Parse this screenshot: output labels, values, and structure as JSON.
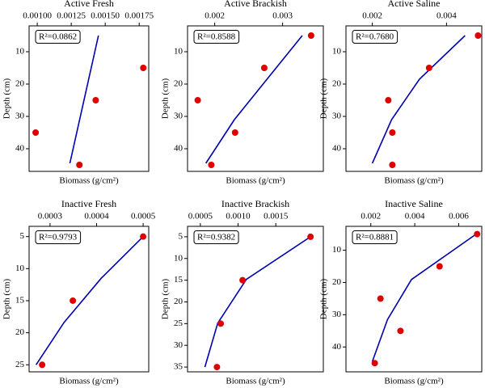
{
  "chart_data": [
    {
      "type": "scatter",
      "title": "Active Fresh",
      "xlabel": "Biomass (g/cm²)",
      "ylabel": "Depth (cm)",
      "annotation": "R²=0.0862",
      "x": [
        0.00178,
        0.00143,
        0.000988,
        0.00131
      ],
      "y": [
        15,
        25,
        35,
        45
      ],
      "color": "#e00000",
      "fit": {
        "x": [
          0.00145,
          0.00124
        ],
        "y": [
          5,
          44.5
        ],
        "color": "#0000b0"
      },
      "xlim": [
        0.00094,
        0.00182
      ],
      "ylim": [
        2,
        47
      ],
      "y_inverted": true,
      "xticks": [
        {
          "value": 0.001,
          "label": "0.00100"
        },
        {
          "value": 0.00125,
          "label": "0.00125"
        },
        {
          "value": 0.0015,
          "label": "0.00150"
        },
        {
          "value": 0.00175,
          "label": "0.00175"
        }
      ],
      "yticks": [
        10,
        20,
        30,
        40
      ]
    },
    {
      "type": "scatter",
      "title": "Active Brackish",
      "xlabel": "Biomass (g/cm²)",
      "ylabel": "Depth (cm)",
      "annotation": "R²=0.8588",
      "x": [
        0.00342,
        0.00273,
        0.00175,
        0.0023,
        0.00195
      ],
      "y": [
        5,
        15,
        25,
        35,
        45
      ],
      "color": "#e00000",
      "fit": {
        "x": [
          0.00187,
          0.00229,
          0.00277,
          0.00329
        ],
        "y": [
          44.5,
          31,
          18.5,
          5
        ],
        "color": "#0000b0"
      },
      "xlim": [
        0.0016,
        0.0036
      ],
      "ylim": [
        2,
        47
      ],
      "y_inverted": true,
      "xticks": [
        0.002,
        0.003
      ],
      "yticks": [
        10,
        20,
        30,
        40
      ]
    },
    {
      "type": "scatter",
      "title": "Active Saline",
      "xlabel": "Biomass (g/cm²)",
      "ylabel": "Depth (cm)",
      "annotation": "R²=0.7680",
      "x": [
        0.00485,
        0.00353,
        0.00243,
        0.00254,
        0.00254
      ],
      "y": [
        5,
        15,
        25,
        35,
        45
      ],
      "color": "#e00000",
      "fit": {
        "x": [
          0.002,
          0.00252,
          0.00327,
          0.0045
        ],
        "y": [
          44.5,
          31,
          18.5,
          5
        ],
        "color": "#0000b0"
      },
      "xlim": [
        0.00129,
        0.00495
      ],
      "ylim": [
        2,
        47
      ],
      "y_inverted": true,
      "xticks": [
        0.002,
        0.004
      ],
      "yticks": [
        10,
        20,
        30,
        40
      ]
    },
    {
      "type": "scatter",
      "title": "Inactive Fresh",
      "xlabel": "Biomass (g/cm²)",
      "ylabel": "Depth (cm)",
      "annotation": "R²=0.9793",
      "x": [
        0.0005,
        0.000349,
        0.000283
      ],
      "y": [
        5,
        15,
        25
      ],
      "color": "#e00000",
      "fit": {
        "x": [
          0.00027,
          0.00033,
          0.00041,
          0.0005
        ],
        "y": [
          25,
          18.4,
          11.5,
          5
        ],
        "color": "#0000b0"
      },
      "xlim": [
        0.000255,
        0.000512
      ],
      "ylim": [
        3.4,
        26.1
      ],
      "y_inverted": true,
      "xticks": [
        0.0003,
        0.0004,
        0.0005
      ],
      "yticks": [
        5,
        10,
        15,
        20,
        25
      ]
    },
    {
      "type": "scatter",
      "title": "Inactive Brackish",
      "xlabel": "Biomass (g/cm²)",
      "ylabel": "Depth (cm)",
      "annotation": "R²=0.9382",
      "x": [
        0.00196,
        0.00106,
        0.00077,
        0.00072
      ],
      "y": [
        5,
        15,
        25,
        35
      ],
      "color": "#e00000",
      "fit": {
        "x": [
          0.00056,
          0.00073,
          0.00111,
          0.00196
        ],
        "y": [
          35,
          24.9,
          14.8,
          5
        ],
        "color": "#0000b0"
      },
      "xlim": [
        0.00033,
        0.00213
      ],
      "ylim": [
        2.6,
        36.1
      ],
      "y_inverted": true,
      "xticks": [
        {
          "value": 0.0005,
          "label": "0.0005"
        },
        {
          "value": 0.001,
          "label": "0.0010"
        },
        0.0015
      ],
      "yticks": [
        5,
        10,
        15,
        20,
        25,
        30,
        35
      ]
    },
    {
      "type": "scatter",
      "title": "Inactive Saline",
      "xlabel": "Biomass (g/cm²)",
      "ylabel": "Depth (cm)",
      "annotation": "R²=0.8881",
      "x": [
        0.00684,
        0.00513,
        0.00244,
        0.00335,
        0.00218
      ],
      "y": [
        5,
        15,
        25,
        35,
        45
      ],
      "color": "#e00000",
      "fit": {
        "x": [
          0.00207,
          0.00276,
          0.00385,
          0.00684
        ],
        "y": [
          44.5,
          31.5,
          19.1,
          4.8
        ],
        "color": "#0000b0"
      },
      "xlim": [
        0.00087,
        0.00705
      ],
      "ylim": [
        2.6,
        47.7
      ],
      "y_inverted": true,
      "xticks": [
        0.002,
        0.004,
        0.006
      ],
      "yticks": [
        10,
        20,
        30,
        40
      ]
    }
  ]
}
